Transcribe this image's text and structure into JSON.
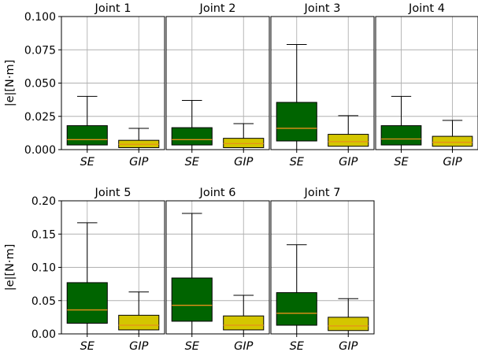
{
  "figure": {
    "ylabel": "|e|[N·m]",
    "colors": {
      "se_fill": "#006400",
      "gip_fill": "#d4c600",
      "median": "#e8901a",
      "grid": "#b0b0b0",
      "frame": "#000000"
    }
  },
  "chart_data": [
    {
      "type": "box",
      "title": "Joint 1",
      "categories": [
        "SE",
        "GIP"
      ],
      "ylim": [
        0,
        0.1
      ],
      "yticks": [
        0,
        0.025,
        0.05,
        0.075,
        0.1
      ],
      "ytick_labels": [
        "0.000",
        "0.025",
        "0.050",
        "0.075",
        "0.100"
      ],
      "ylabel": "|e|[N·m]",
      "grid": true,
      "boxes": [
        {
          "category": "SE",
          "whislo": 0,
          "q1": 0.0035,
          "median": 0.0075,
          "q3": 0.018,
          "whishi": 0.04
        },
        {
          "category": "GIP",
          "whislo": 0,
          "q1": 0.0015,
          "median": 0.004,
          "q3": 0.007,
          "whishi": 0.016
        }
      ]
    },
    {
      "type": "box",
      "title": "Joint 2",
      "categories": [
        "SE",
        "GIP"
      ],
      "ylim": [
        0,
        0.1
      ],
      "yticks": [
        0,
        0.025,
        0.05,
        0.075,
        0.1
      ],
      "grid": true,
      "boxes": [
        {
          "category": "SE",
          "whislo": 0,
          "q1": 0.0035,
          "median": 0.0075,
          "q3": 0.0165,
          "whishi": 0.037
        },
        {
          "category": "GIP",
          "whislo": 0,
          "q1": 0.0015,
          "median": 0.0045,
          "q3": 0.0085,
          "whishi": 0.0195
        }
      ]
    },
    {
      "type": "box",
      "title": "Joint 3",
      "categories": [
        "SE",
        "GIP"
      ],
      "ylim": [
        0,
        0.1
      ],
      "yticks": [
        0,
        0.025,
        0.05,
        0.075,
        0.1
      ],
      "grid": true,
      "boxes": [
        {
          "category": "SE",
          "whislo": 0,
          "q1": 0.0065,
          "median": 0.016,
          "q3": 0.0355,
          "whishi": 0.079
        },
        {
          "category": "GIP",
          "whislo": 0,
          "q1": 0.0025,
          "median": 0.006,
          "q3": 0.0115,
          "whishi": 0.0255
        }
      ]
    },
    {
      "type": "box",
      "title": "Joint 4",
      "categories": [
        "SE",
        "GIP"
      ],
      "ylim": [
        0,
        0.1
      ],
      "yticks": [
        0,
        0.025,
        0.05,
        0.075,
        0.1
      ],
      "grid": true,
      "boxes": [
        {
          "category": "SE",
          "whislo": 0,
          "q1": 0.0035,
          "median": 0.008,
          "q3": 0.018,
          "whishi": 0.04
        },
        {
          "category": "GIP",
          "whislo": 0,
          "q1": 0.0025,
          "median": 0.0055,
          "q3": 0.01,
          "whishi": 0.022
        }
      ]
    },
    {
      "type": "box",
      "title": "Joint 5",
      "categories": [
        "SE",
        "GIP"
      ],
      "ylim": [
        0,
        0.2
      ],
      "yticks": [
        0,
        0.05,
        0.1,
        0.15,
        0.2
      ],
      "ytick_labels": [
        "0.00",
        "0.05",
        "0.10",
        "0.15",
        "0.20"
      ],
      "ylabel": "|e|[N·m]",
      "grid": true,
      "boxes": [
        {
          "category": "SE",
          "whislo": 0,
          "q1": 0.016,
          "median": 0.036,
          "q3": 0.077,
          "whishi": 0.167
        },
        {
          "category": "GIP",
          "whislo": 0,
          "q1": 0.006,
          "median": 0.013,
          "q3": 0.028,
          "whishi": 0.063
        }
      ]
    },
    {
      "type": "box",
      "title": "Joint 6",
      "categories": [
        "SE",
        "GIP"
      ],
      "ylim": [
        0,
        0.2
      ],
      "yticks": [
        0,
        0.05,
        0.1,
        0.15,
        0.2
      ],
      "grid": true,
      "boxes": [
        {
          "category": "SE",
          "whislo": 0,
          "q1": 0.019,
          "median": 0.043,
          "q3": 0.084,
          "whishi": 0.181
        },
        {
          "category": "GIP",
          "whislo": 0,
          "q1": 0.006,
          "median": 0.013,
          "q3": 0.027,
          "whishi": 0.058
        }
      ]
    },
    {
      "type": "box",
      "title": "Joint 7",
      "categories": [
        "SE",
        "GIP"
      ],
      "ylim": [
        0,
        0.2
      ],
      "yticks": [
        0,
        0.05,
        0.1,
        0.15,
        0.2
      ],
      "grid": true,
      "boxes": [
        {
          "category": "SE",
          "whislo": 0,
          "q1": 0.013,
          "median": 0.031,
          "q3": 0.062,
          "whishi": 0.134
        },
        {
          "category": "GIP",
          "whislo": 0,
          "q1": 0.005,
          "median": 0.012,
          "q3": 0.025,
          "whishi": 0.053
        }
      ]
    }
  ]
}
